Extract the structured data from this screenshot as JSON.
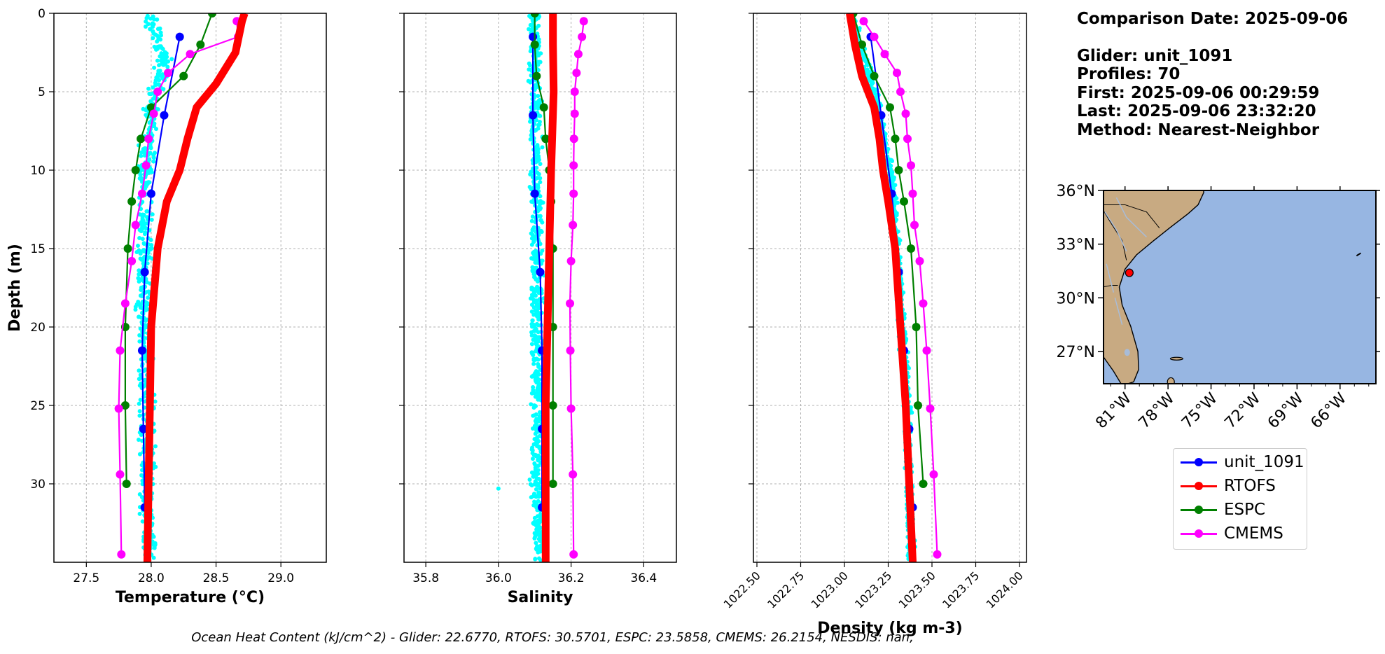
{
  "info": {
    "comparison_date": "Comparison Date: 2025-09-06",
    "glider": "Glider: unit_1091",
    "profiles": "Profiles: 70",
    "first": "First: 2025-09-06 00:29:59",
    "last": "Last: 2025-09-06 23:32:20",
    "method": "Method: Nearest-Neighbor"
  },
  "footer": "Ocean Heat Content (kJ/cm^2) - Glider: 22.6770,  RTOFS: 30.5701,  ESPC: 23.5858,  CMEMS: 26.2154,  NESDIS: nan,",
  "colors": {
    "glider_raw": "#00ffff",
    "unit_1091": "#0000ff",
    "RTOFS": "#ff0000",
    "ESPC": "#008000",
    "CMEMS": "#ff00ff",
    "land": "#c8aa82",
    "ocean": "#97b6e2"
  },
  "legend": [
    {
      "name": "unit_1091",
      "color": "#0000ff"
    },
    {
      "name": "RTOFS",
      "color": "#ff0000"
    },
    {
      "name": "ESPC",
      "color": "#008000"
    },
    {
      "name": "CMEMS",
      "color": "#ff00ff"
    }
  ],
  "chart_data": [
    {
      "type": "line",
      "xlabel": "Temperature (°C)",
      "ylabel": "Depth (m)",
      "xlim": [
        27.25,
        29.35
      ],
      "ylim": [
        35,
        0
      ],
      "xticks": [
        "27.5",
        "28.0",
        "28.5",
        "29.0"
      ],
      "yticks": [
        "0",
        "5",
        "10",
        "15",
        "20",
        "25",
        "30"
      ],
      "grid": true,
      "raw_scatter": {
        "name": "glider",
        "center": [
          [
            0.5,
            28.0
          ],
          [
            3,
            28.1
          ],
          [
            6,
            28.0
          ],
          [
            10,
            27.95
          ],
          [
            15,
            27.95
          ],
          [
            20,
            27.95
          ],
          [
            25,
            27.97
          ],
          [
            30,
            27.97
          ],
          [
            34.5,
            27.98
          ]
        ],
        "spread": 0.08,
        "count": 700
      },
      "series": [
        {
          "name": "unit_1091",
          "depth": [
            1.5,
            6.5,
            11.5,
            16.5,
            21.5,
            26.5,
            31.5
          ],
          "values": [
            28.22,
            28.1,
            28.0,
            27.95,
            27.93,
            27.94,
            27.95
          ]
        },
        {
          "name": "RTOFS",
          "depth": [
            0,
            0.5,
            2.5,
            4.5,
            6,
            8,
            10,
            12,
            15,
            20,
            25,
            30,
            35
          ],
          "values": [
            28.72,
            28.7,
            28.65,
            28.5,
            28.35,
            28.28,
            28.22,
            28.12,
            28.05,
            28.0,
            27.99,
            27.98,
            27.97
          ]
        },
        {
          "name": "ESPC",
          "depth": [
            0,
            2,
            4,
            6,
            8,
            10,
            12,
            15,
            20,
            25,
            30
          ],
          "values": [
            28.47,
            28.38,
            28.25,
            28.0,
            27.92,
            27.88,
            27.85,
            27.82,
            27.8,
            27.8,
            27.81
          ]
        },
        {
          "name": "CMEMS",
          "depth": [
            0.5,
            1.5,
            2.6,
            3.8,
            5.0,
            6.4,
            8.0,
            9.7,
            11.5,
            13.5,
            15.8,
            18.5,
            21.5,
            25.2,
            29.4,
            34.5
          ],
          "values": [
            28.66,
            28.67,
            28.3,
            28.13,
            28.05,
            28.02,
            27.98,
            27.96,
            27.93,
            27.88,
            27.85,
            27.8,
            27.76,
            27.75,
            27.76,
            27.77
          ]
        }
      ]
    },
    {
      "type": "line",
      "xlabel": "Salinity",
      "ylabel": "",
      "xlim": [
        35.74,
        36.49
      ],
      "ylim": [
        35,
        0
      ],
      "xticks": [
        "35.8",
        "36.0",
        "36.2",
        "36.4"
      ],
      "yticks": [],
      "grid": true,
      "raw_scatter": {
        "name": "glider",
        "center": [
          [
            0.5,
            36.1
          ],
          [
            35,
            36.11
          ]
        ],
        "spread": 0.025,
        "count": 700,
        "outlier": [
          30.3,
          36.0
        ]
      },
      "series": [
        {
          "name": "unit_1091",
          "depth": [
            1.5,
            6.5,
            11.5,
            16.5,
            21.5,
            26.5,
            31.5
          ],
          "values": [
            36.095,
            36.095,
            36.1,
            36.115,
            36.12,
            36.12,
            36.12
          ]
        },
        {
          "name": "RTOFS",
          "depth": [
            0,
            2,
            5,
            10,
            15,
            20,
            25,
            30,
            35
          ],
          "values": [
            36.15,
            36.15,
            36.152,
            36.145,
            36.14,
            36.135,
            36.13,
            36.13,
            36.13
          ]
        },
        {
          "name": "ESPC",
          "depth": [
            0,
            2,
            4,
            6,
            8,
            10,
            12,
            15,
            20,
            25,
            30
          ],
          "values": [
            36.1,
            36.1,
            36.105,
            36.125,
            36.13,
            36.14,
            36.145,
            36.15,
            36.15,
            36.15,
            36.15
          ]
        },
        {
          "name": "CMEMS",
          "depth": [
            0.5,
            1.5,
            2.6,
            3.8,
            5.0,
            6.4,
            8.0,
            9.7,
            11.5,
            13.5,
            15.8,
            18.5,
            21.5,
            25.2,
            29.4,
            34.5
          ],
          "values": [
            36.235,
            36.23,
            36.22,
            36.215,
            36.21,
            36.21,
            36.208,
            36.207,
            36.207,
            36.205,
            36.2,
            36.197,
            36.198,
            36.2,
            36.205,
            36.207
          ]
        }
      ]
    },
    {
      "type": "line",
      "xlabel": "Density (kg m-3)",
      "ylabel": "",
      "xlim": [
        1022.48,
        1024.04
      ],
      "ylim": [
        35,
        0
      ],
      "xticks": [
        "1022.50",
        "1022.75",
        "1023.00",
        "1023.25",
        "1023.50",
        "1023.75",
        "1024.00"
      ],
      "yticks": [],
      "grid": true,
      "raw_scatter": {
        "name": "glider",
        "center": [
          [
            0.5,
            1023.05
          ],
          [
            5,
            1023.17
          ],
          [
            10,
            1023.26
          ],
          [
            15,
            1023.3
          ],
          [
            20,
            1023.33
          ],
          [
            25,
            1023.36
          ],
          [
            30,
            1023.37
          ],
          [
            34.5,
            1023.38
          ]
        ],
        "spread": 0.03,
        "count": 700
      },
      "series": [
        {
          "name": "unit_1091",
          "depth": [
            1.5,
            6.5,
            11.5,
            16.5,
            21.5,
            26.5,
            31.5
          ],
          "values": [
            1023.15,
            1023.21,
            1023.27,
            1023.31,
            1023.34,
            1023.37,
            1023.39
          ]
        },
        {
          "name": "RTOFS",
          "depth": [
            0,
            2,
            4,
            6,
            8,
            10,
            12,
            15,
            20,
            25,
            30,
            35
          ],
          "values": [
            1023.03,
            1023.06,
            1023.1,
            1023.17,
            1023.2,
            1023.22,
            1023.25,
            1023.29,
            1023.32,
            1023.35,
            1023.37,
            1023.39
          ]
        },
        {
          "name": "ESPC",
          "depth": [
            0,
            2,
            4,
            6,
            8,
            10,
            12,
            15,
            20,
            25,
            30
          ],
          "values": [
            1023.05,
            1023.1,
            1023.17,
            1023.26,
            1023.29,
            1023.31,
            1023.34,
            1023.38,
            1023.41,
            1023.42,
            1023.45
          ]
        },
        {
          "name": "CMEMS",
          "depth": [
            0.5,
            1.5,
            2.6,
            3.8,
            5.0,
            6.4,
            8.0,
            9.7,
            11.5,
            13.5,
            15.8,
            18.5,
            21.5,
            25.2,
            29.4,
            34.5
          ],
          "values": [
            1023.11,
            1023.17,
            1023.23,
            1023.3,
            1023.32,
            1023.35,
            1023.36,
            1023.38,
            1023.39,
            1023.4,
            1023.43,
            1023.45,
            1023.47,
            1023.49,
            1023.51,
            1023.53
          ]
        }
      ]
    },
    {
      "type": "map",
      "xlabel": "",
      "ylabel": "",
      "lon_range": [
        -82.5,
        -63.5
      ],
      "lat_range": [
        25.2,
        36.0
      ],
      "lon_ticks": [
        {
          "v": -81,
          "label": "81°W"
        },
        {
          "v": -78,
          "label": "78°W"
        },
        {
          "v": -75,
          "label": "75°W"
        },
        {
          "v": -72,
          "label": "72°W"
        },
        {
          "v": -69,
          "label": "69°W"
        },
        {
          "v": -66,
          "label": "66°W"
        }
      ],
      "lat_ticks": [
        {
          "v": 36,
          "label": "36°N"
        },
        {
          "v": 33,
          "label": "33°N"
        },
        {
          "v": 30,
          "label": "30°N"
        },
        {
          "v": 27,
          "label": "27°N"
        }
      ],
      "glider_position": {
        "lon": -80.7,
        "lat": 31.4
      }
    }
  ]
}
